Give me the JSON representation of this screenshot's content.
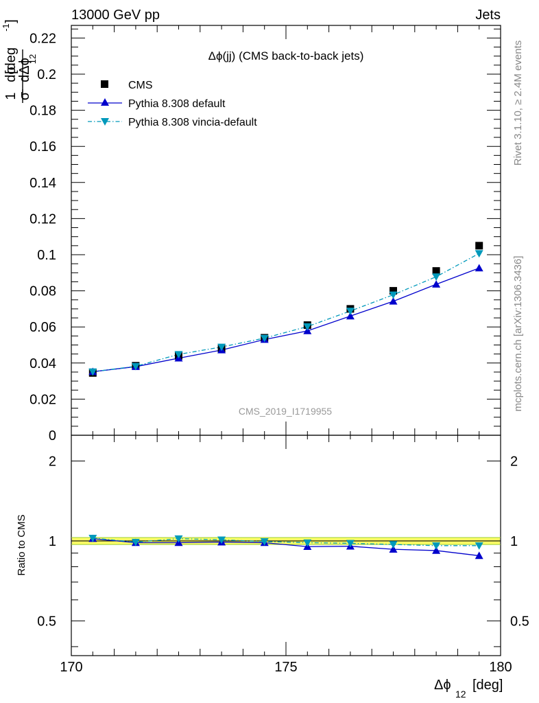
{
  "header": {
    "left": "13000 GeV pp",
    "right": "Jets"
  },
  "side_labels": {
    "rivet": "Rivet 3.1.10, ≥ 2.4M events",
    "mcplots": "mcplots.cern.ch [arXiv:1306.3436]"
  },
  "plot_title": "Δϕ(jj) (CMS back-to-back jets)",
  "watermark": "CMS_2019_I1719955",
  "axes": {
    "x_label_main": "Δϕ",
    "x_label_sub": "12",
    "x_label_unit": "[deg]",
    "y_label_frac_num": "1",
    "y_label_frac_den": "σ",
    "y_label_dsigma": "dσ",
    "y_label_dphi": "dΔϕ",
    "y_label_sub": "12",
    "y_label_unit": "[deg",
    "y_label_exp": "-1",
    "y_label_close": "]",
    "ratio_label": "Ratio to CMS"
  },
  "legend": [
    {
      "name": "CMS"
    },
    {
      "name": "Pythia 8.308 default"
    },
    {
      "name": "Pythia 8.308 vincia-default"
    }
  ],
  "colors": {
    "cms": "#000000",
    "default": "#0000cc",
    "vincia": "#0099bb",
    "band": "#ffff66",
    "band_edge": "#99cc33"
  },
  "chart_data": [
    {
      "type": "line",
      "title": "Δϕ(jj) (CMS back-to-back jets)",
      "xlabel": "Δϕ12 [deg]",
      "ylabel": "1/σ dσ/dΔϕ12 [deg^-1]",
      "xlim": [
        170,
        180
      ],
      "ylim": [
        0,
        0.227
      ],
      "x": [
        170.5,
        171.5,
        172.5,
        173.5,
        174.5,
        175.5,
        176.5,
        177.5,
        178.5,
        179.5
      ],
      "x_ticks": [
        "170",
        "175",
        "180"
      ],
      "y_ticks": [
        "0",
        "0.02",
        "0.04",
        "0.06",
        "0.08",
        "0.1",
        "0.12",
        "0.14",
        "0.16",
        "0.18",
        "0.2",
        "0.22"
      ],
      "series": [
        {
          "name": "CMS",
          "values": [
            0.0345,
            0.0385,
            0.044,
            0.048,
            0.054,
            0.061,
            0.07,
            0.08,
            0.091,
            0.105
          ]
        },
        {
          "name": "Pythia 8.308 default",
          "values": [
            0.0352,
            0.038,
            0.0427,
            0.0472,
            0.053,
            0.0578,
            0.066,
            0.0742,
            0.0836,
            0.0926
          ]
        },
        {
          "name": "Pythia 8.308 vincia-default",
          "values": [
            0.0352,
            0.0382,
            0.0448,
            0.0489,
            0.0538,
            0.0602,
            0.0688,
            0.0778,
            0.0878,
            0.1007
          ]
        }
      ],
      "legend_position": "top-left"
    },
    {
      "type": "line",
      "ylabel": "Ratio to CMS",
      "xlim": [
        170,
        180
      ],
      "ylim": [
        0.37,
        2.5
      ],
      "log_y": true,
      "x": [
        170.5,
        171.5,
        172.5,
        173.5,
        174.5,
        175.5,
        176.5,
        177.5,
        178.5,
        179.5
      ],
      "y_ticks": [
        "0.5",
        "1",
        "2"
      ],
      "band": {
        "name": "CMS",
        "low": 0.97,
        "high": 1.03
      },
      "series": [
        {
          "name": "Pythia 8.308 default",
          "values": [
            1.02,
            0.985,
            0.985,
            0.99,
            0.985,
            0.952,
            0.955,
            0.93,
            0.92,
            0.88
          ]
        },
        {
          "name": "Pythia 8.308 vincia-default",
          "values": [
            1.025,
            0.99,
            1.02,
            1.01,
            0.995,
            0.985,
            0.98,
            0.97,
            0.96,
            0.96
          ]
        }
      ]
    }
  ]
}
